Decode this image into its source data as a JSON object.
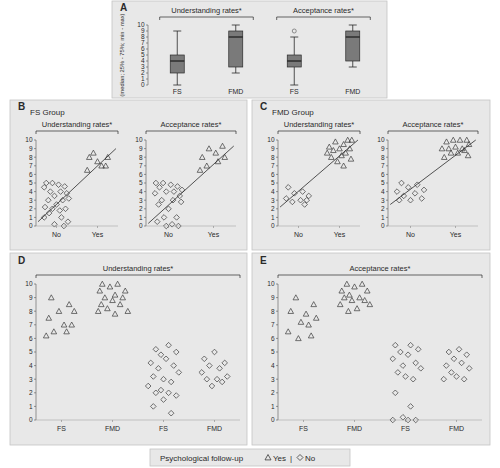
{
  "chart_data": [
    {
      "type": "box",
      "panel": "A",
      "ylabel": "(median; 25% - 75%; min - max)",
      "group_titles": [
        "Understanding rates*",
        "Acceptance rates*"
      ],
      "categories": [
        "FS",
        "FMD",
        "FS",
        "FMD"
      ],
      "boxes": [
        {
          "min": 0,
          "q1": 2,
          "median": 4,
          "q3": 5,
          "max": 9
        },
        {
          "min": 2,
          "q1": 3,
          "median": 8,
          "q3": 9,
          "max": 10
        },
        {
          "min": 0,
          "q1": 3,
          "median": 4,
          "q3": 5,
          "max": 8,
          "outliers": [
            9
          ]
        },
        {
          "min": 3,
          "q1": 4,
          "median": 8,
          "q3": 9,
          "max": 10
        }
      ],
      "ylim": [
        0,
        10
      ],
      "yticks": [
        0,
        1,
        2,
        3,
        4,
        5,
        6,
        7,
        8,
        9,
        10
      ]
    },
    {
      "type": "scatter",
      "panel": "B",
      "subtitle": "FS Group",
      "title": "Understanding rates*",
      "xlim": [
        -0.5,
        1.5
      ],
      "xticks": [
        {
          "value": 0,
          "label": "No"
        },
        {
          "value": 1,
          "label": "Yes"
        }
      ],
      "ylim": [
        0,
        10
      ],
      "yticks": [
        0,
        1,
        2,
        3,
        4,
        5,
        6,
        7,
        8,
        9,
        10
      ],
      "series": [
        {
          "marker": "diamond",
          "x": [
            -0.25,
            -0.1,
            0.05,
            0.2,
            -0.3,
            -0.15,
            0.1,
            0.25,
            -0.05,
            0.3,
            -0.2,
            0.15,
            0.0,
            -0.28,
            -0.1,
            0.22,
            0.08,
            -0.18,
            0.12,
            -0.3,
            0.28,
            -0.05,
            0.18
          ],
          "values": [
            5,
            5,
            4.8,
            4.6,
            4.5,
            4,
            4,
            3.8,
            3.5,
            3.2,
            3,
            3,
            2.5,
            2.2,
            2,
            2,
            1.8,
            1.5,
            1,
            1,
            0.5,
            0.2,
            0
          ]
        },
        {
          "marker": "triangle",
          "x": [
            0.9,
            0.8,
            1.25,
            1.0,
            1.1,
            1.2,
            0.75
          ],
          "values": [
            8.5,
            8,
            8,
            7.5,
            7,
            7,
            6.5
          ]
        },
        {
          "type": "line",
          "x": [
            -0.45,
            1.45
          ],
          "values": [
            0.5,
            9
          ]
        }
      ]
    },
    {
      "type": "scatter",
      "title": "Acceptance rates*",
      "xlim": [
        -0.5,
        1.5
      ],
      "xticks": [
        {
          "value": 0,
          "label": "No"
        },
        {
          "value": 1,
          "label": "Yes"
        }
      ],
      "ylim": [
        0,
        10
      ],
      "yticks": [
        0,
        1,
        2,
        3,
        4,
        5,
        6,
        7,
        8,
        9,
        10
      ],
      "series": [
        {
          "marker": "diamond",
          "x": [
            -0.28,
            -0.12,
            0.05,
            0.2,
            -0.2,
            0.3,
            -0.05,
            0.12,
            -0.3,
            0.25,
            -0.15,
            0.1,
            0.28,
            -0.22,
            0.0,
            -0.1,
            0.18,
            -0.25,
            0.08,
            0.22,
            -0.05
          ],
          "values": [
            5,
            5,
            4.8,
            4.6,
            4.5,
            4.2,
            4,
            4,
            3.8,
            3.5,
            3,
            3,
            2.8,
            2.5,
            2,
            1,
            1,
            0.5,
            0.2,
            0,
            0
          ]
        },
        {
          "marker": "triangle",
          "x": [
            1.2,
            0.9,
            1.05,
            0.75,
            1.25,
            1.1,
            0.85,
            0.7
          ],
          "values": [
            9.3,
            9,
            8.5,
            8,
            8,
            7.5,
            7,
            6.5
          ]
        },
        {
          "type": "line",
          "x": [
            -0.45,
            1.45
          ],
          "values": [
            0.3,
            9.3
          ]
        }
      ]
    },
    {
      "type": "scatter",
      "panel": "C",
      "subtitle": "FMD Group",
      "title": "Understanding rates*",
      "xlim": [
        -0.5,
        1.5
      ],
      "xticks": [
        {
          "value": 0,
          "label": "No"
        },
        {
          "value": 1,
          "label": "Yes"
        }
      ],
      "ylim": [
        0,
        10
      ],
      "yticks": [
        0,
        1,
        2,
        3,
        4,
        5,
        6,
        7,
        8,
        9,
        10
      ],
      "series": [
        {
          "marker": "diamond",
          "x": [
            -0.25,
            0.1,
            -0.1,
            0.25,
            -0.3,
            0.05,
            0.2,
            -0.15,
            0.15
          ],
          "values": [
            4.5,
            4,
            3.8,
            3.5,
            3.2,
            3,
            3,
            2.8,
            2.5
          ]
        },
        {
          "marker": "triangle",
          "x": [
            1.2,
            1.3,
            0.9,
            1.1,
            0.75,
            1.0,
            1.25,
            0.85,
            1.15,
            0.7,
            1.05,
            0.8,
            1.28,
            0.95,
            1.1
          ],
          "values": [
            10,
            10,
            9.8,
            9.5,
            9.2,
            9,
            9,
            8.8,
            8.5,
            8.5,
            8.2,
            8,
            7.8,
            7.5,
            7
          ]
        },
        {
          "type": "line",
          "x": [
            -0.45,
            1.45
          ],
          "values": [
            2.2,
            10
          ]
        }
      ]
    },
    {
      "type": "scatter",
      "title": "Acceptance rates*",
      "xlim": [
        -0.5,
        1.5
      ],
      "xticks": [
        {
          "value": 0,
          "label": "No"
        },
        {
          "value": 1,
          "label": "Yes"
        }
      ],
      "ylim": [
        0,
        10
      ],
      "yticks": [
        0,
        1,
        2,
        3,
        4,
        5,
        6,
        7,
        8,
        9,
        10
      ],
      "series": [
        {
          "marker": "diamond",
          "x": [
            -0.2,
            0.15,
            -0.05,
            0.3,
            -0.3,
            0.1,
            -0.15,
            0.25,
            0.0,
            -0.25
          ],
          "values": [
            5,
            4.8,
            4.5,
            4.2,
            4,
            3.8,
            3.5,
            3.2,
            3,
            3
          ]
        },
        {
          "marker": "triangle",
          "x": [
            1.25,
            0.95,
            1.1,
            0.8,
            1.3,
            1.0,
            0.85,
            1.15,
            0.7,
            1.2,
            0.9,
            1.05,
            1.28,
            0.75
          ],
          "values": [
            10,
            10,
            10,
            9.8,
            9.5,
            9.2,
            9,
            9,
            9,
            8.8,
            8.5,
            8.5,
            8.2,
            8
          ]
        },
        {
          "type": "line",
          "x": [
            -0.45,
            1.45
          ],
          "values": [
            2.5,
            10
          ]
        }
      ]
    },
    {
      "type": "scatter",
      "panel": "D",
      "title": "Understanding rates*",
      "xlim": [
        -0.5,
        3.5
      ],
      "xticks": [
        {
          "value": 0,
          "label": "FS"
        },
        {
          "value": 1,
          "label": "FMD"
        },
        {
          "value": 2,
          "label": "FS"
        },
        {
          "value": 3,
          "label": "FMD"
        }
      ],
      "ylim": [
        0,
        10
      ],
      "yticks": [
        0,
        1,
        2,
        3,
        4,
        5,
        6,
        7,
        8,
        9,
        10
      ],
      "series": [
        {
          "marker": "triangle",
          "x": [
            -0.2,
            0.15,
            -0.05,
            0.25,
            -0.25,
            0.05,
            0.2,
            -0.15,
            0.1,
            -0.3,
            0.8,
            1.1,
            0.95,
            0.75,
            1.25,
            1.05,
            0.85,
            1.2,
            1.0,
            0.78,
            1.15,
            0.9,
            1.3,
            0.72,
            1.05
          ],
          "values": [
            9,
            8.5,
            8,
            8,
            7.5,
            7,
            7,
            6.5,
            6.5,
            6.2,
            10,
            10,
            9.8,
            9.5,
            9.5,
            9.2,
            9,
            9,
            8.8,
            8.5,
            8.5,
            8.2,
            8,
            8,
            7.8
          ]
        },
        {
          "marker": "diamond",
          "x": [
            2.1,
            1.85,
            2.25,
            1.95,
            2.05,
            1.75,
            2.2,
            1.9,
            2.3,
            1.8,
            2.0,
            2.15,
            1.7,
            1.95,
            2.1,
            1.85,
            2.25,
            2.0,
            1.8,
            2.15,
            3.0,
            2.8,
            3.2,
            2.9,
            3.1,
            2.75,
            3.25,
            2.85,
            3.05,
            3.15,
            2.95
          ],
          "values": [
            5.5,
            5.2,
            5,
            4.8,
            4.5,
            4.2,
            4,
            3.8,
            3.5,
            3.2,
            3,
            2.8,
            2.5,
            2.2,
            2,
            2,
            1.8,
            1.5,
            1,
            0.5,
            5,
            4.5,
            4.2,
            4,
            3.8,
            3.5,
            3.2,
            3,
            3,
            2.8,
            2.5
          ]
        }
      ]
    },
    {
      "type": "scatter",
      "panel": "E",
      "title": "Acceptance rates*",
      "xlim": [
        -0.5,
        3.5
      ],
      "xticks": [
        {
          "value": 0,
          "label": "FS"
        },
        {
          "value": 1,
          "label": "FMD"
        },
        {
          "value": 2,
          "label": "FS"
        },
        {
          "value": 3,
          "label": "FMD"
        }
      ],
      "ylim": [
        0,
        10
      ],
      "yticks": [
        0,
        1,
        2,
        3,
        4,
        5,
        6,
        7,
        8,
        9,
        10
      ],
      "series": [
        {
          "marker": "triangle",
          "x": [
            -0.15,
            0.2,
            -0.25,
            0.05,
            0.25,
            -0.05,
            0.1,
            -0.3,
            0.15,
            -0.1,
            0.85,
            1.15,
            1.0,
            0.75,
            1.25,
            0.9,
            1.1,
            0.8,
            1.2,
            0.95,
            1.3,
            0.72,
            1.05,
            0.88
          ],
          "values": [
            9,
            8.5,
            8,
            7.8,
            7.5,
            7.2,
            7,
            6.5,
            6.2,
            6,
            10,
            10,
            9.8,
            9.5,
            9.5,
            9.2,
            9,
            9,
            8.8,
            8.8,
            8.5,
            8.5,
            8.2,
            8
          ]
        },
        {
          "marker": "diamond",
          "x": [
            1.8,
            2.1,
            2.25,
            1.9,
            2.05,
            1.75,
            2.2,
            1.95,
            2.3,
            1.85,
            2.0,
            2.15,
            1.8,
            2.1,
            1.95,
            2.2,
            1.75,
            2.05,
            3.05,
            2.85,
            3.2,
            2.95,
            3.1,
            2.8,
            3.25,
            2.9,
            3.0,
            3.15,
            2.75
          ],
          "values": [
            5.5,
            5.5,
            5.2,
            5,
            4.8,
            4.5,
            4.2,
            4,
            3.8,
            3.5,
            3.2,
            3,
            2,
            1,
            0.2,
            0,
            0,
            0,
            5.2,
            5,
            4.8,
            4.5,
            4.2,
            4,
            3.8,
            3.5,
            3.2,
            3,
            3
          ]
        }
      ]
    }
  ],
  "key": {
    "title": "Psychological follow-up",
    "separator": "|",
    "items": [
      {
        "marker": "triangle",
        "label": "Yes"
      },
      {
        "marker": "diamond",
        "label": "No"
      }
    ]
  }
}
